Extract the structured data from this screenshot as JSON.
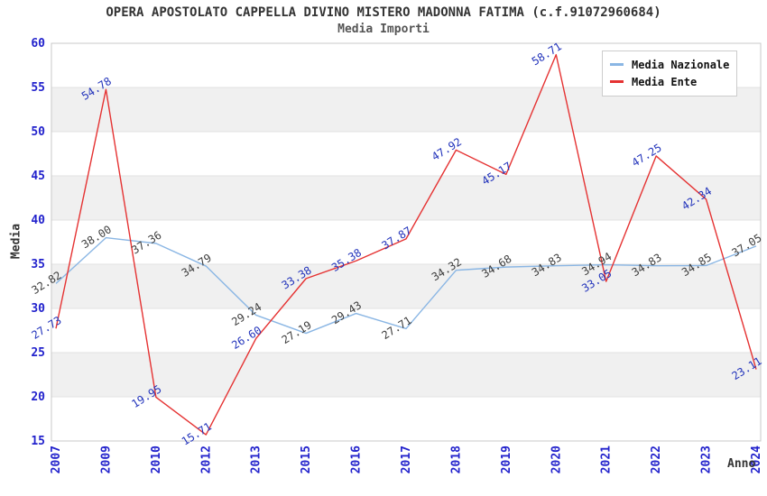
{
  "header": {
    "title": "OPERA APOSTOLATO CAPPELLA DIVINO MISTERO MADONNA FATIMA (c.f.91072960684)",
    "subtitle": "Media Importi"
  },
  "colors": {
    "nazionale_line": "#8ab6e4",
    "ente_line": "#e53232",
    "tick_label": "#2222cc",
    "nazionale_data_label": "#3d3d3d",
    "ente_data_label": "#2233bb",
    "band_fill": "#f0f0f0",
    "gridline": "#e2e2e2",
    "plot_border": "#c9c9c9",
    "axis_title": "#333333"
  },
  "chart_data": {
    "type": "line",
    "title": "OPERA APOSTOLATO CAPPELLA DIVINO MISTERO MADONNA FATIMA (c.f.91072960684)",
    "subtitle": "Media Importi",
    "xlabel": "Anno",
    "ylabel": "Media",
    "ylim": [
      15,
      60
    ],
    "ytick_step": 5,
    "yticks": [
      15,
      20,
      25,
      30,
      35,
      40,
      45,
      50,
      55,
      60
    ],
    "grid": "horizontal-bands",
    "legend_position": "top-right-inside",
    "categories": [
      "2007",
      "2009",
      "2010",
      "2012",
      "2013",
      "2015",
      "2016",
      "2017",
      "2018",
      "2019",
      "2020",
      "2021",
      "2022",
      "2023",
      "2024"
    ],
    "series": [
      {
        "name": "Media Nazionale",
        "color": "#8ab6e4",
        "values": [
          32.82,
          38.0,
          37.36,
          34.79,
          29.24,
          27.19,
          29.43,
          27.71,
          34.32,
          34.68,
          34.83,
          34.94,
          34.83,
          34.85,
          37.05
        ]
      },
      {
        "name": "Media Ente",
        "color": "#e53232",
        "values": [
          27.73,
          54.78,
          19.95,
          15.71,
          26.6,
          33.38,
          35.38,
          37.87,
          47.92,
          45.17,
          58.71,
          33.05,
          47.25,
          42.34,
          23.11
        ]
      }
    ]
  }
}
